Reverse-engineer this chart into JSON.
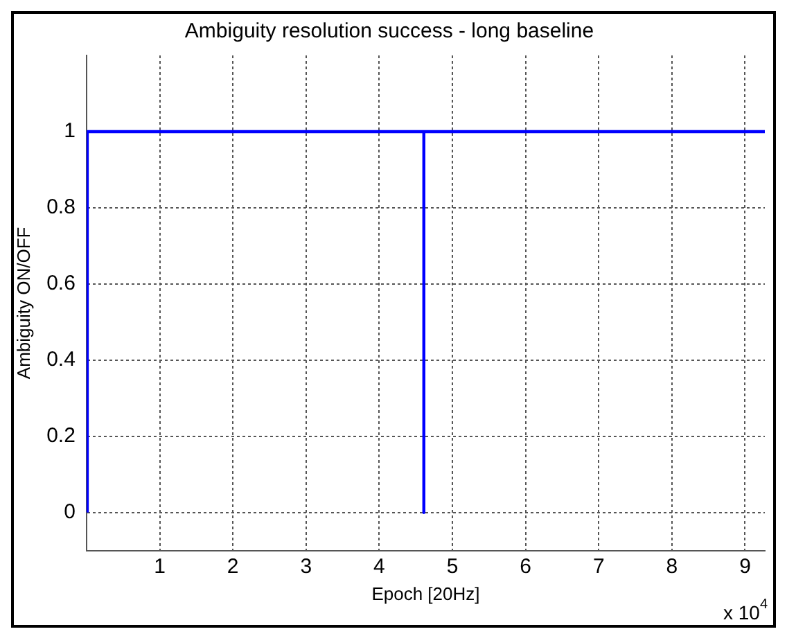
{
  "chart_data": {
    "type": "line",
    "title": "Ambiguity resolution success - long baseline",
    "xlabel": "Epoch [20Hz]",
    "ylabel": "Ambiguity ON/OFF",
    "x": [
      0.01,
      0.01,
      4.61,
      4.61,
      4.61,
      9.27
    ],
    "series": [
      {
        "color": "#0000ff",
        "values": [
          0,
          1,
          1,
          0,
          1,
          1
        ]
      }
    ],
    "xlim": [
      0,
      9.27
    ],
    "ylim": [
      -0.1,
      1.2
    ],
    "xticks": [
      1,
      2,
      3,
      4,
      5,
      6,
      7,
      8,
      9
    ],
    "yticks": [
      0,
      0.2,
      0.4,
      0.6,
      0.8,
      1
    ],
    "grid": true,
    "legend": false,
    "marker": "none",
    "line_style": "solid",
    "annotations": [
      "x 10$^{4}$"
    ]
  }
}
